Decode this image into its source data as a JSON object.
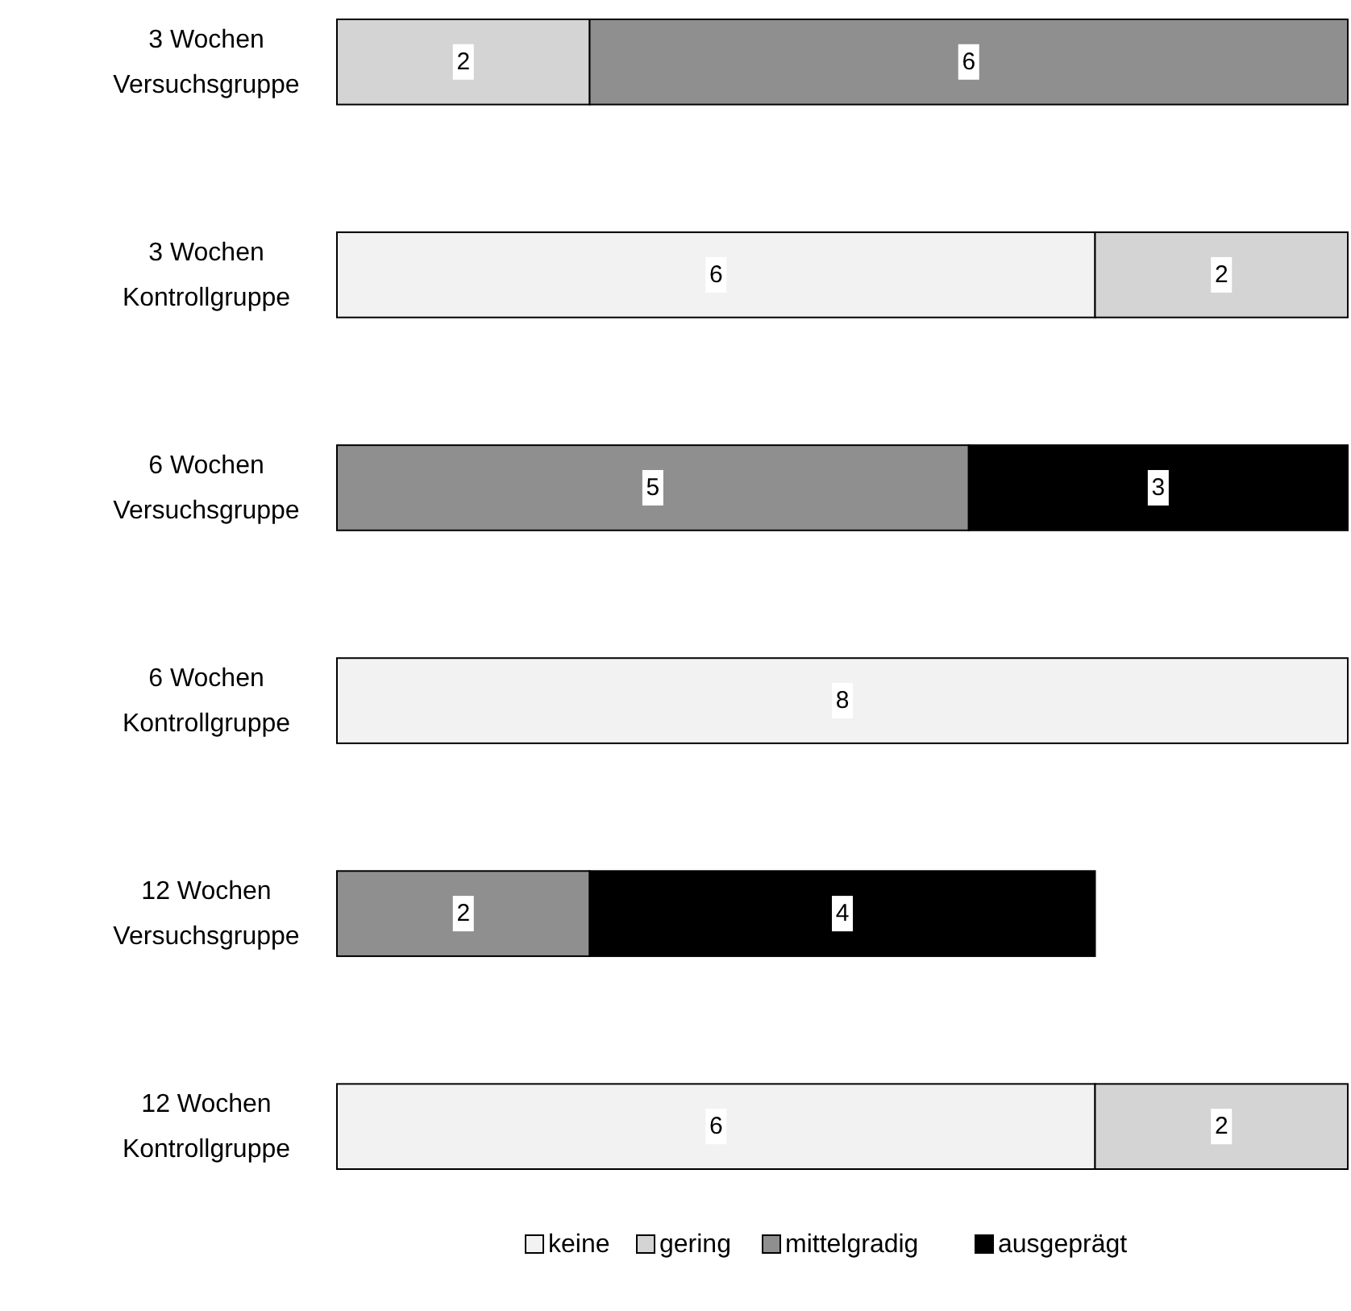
{
  "chart_data": {
    "type": "bar",
    "orientation": "horizontal",
    "stacked": true,
    "xlim": [
      0,
      8
    ],
    "data_labels": true,
    "legend": "bottom",
    "categories": [
      "3 Wochen Versuchsgruppe",
      "3 Wochen Kontrollgruppe",
      "6 Wochen Versuchsgruppe",
      "6 Wochen Kontrollgruppe",
      "12 Wochen Versuchsgruppe",
      "12 Wochen Kontrollgruppe"
    ],
    "series": [
      {
        "name": "keine",
        "color": "#f2f2f2",
        "values": [
          null,
          6,
          null,
          8,
          null,
          6
        ]
      },
      {
        "name": "gering",
        "color": "#d4d4d4",
        "values": [
          2,
          2,
          null,
          null,
          null,
          2
        ]
      },
      {
        "name": "mittelgradig",
        "color": "#8f8f8f",
        "values": [
          6,
          null,
          5,
          null,
          2,
          null
        ]
      },
      {
        "name": "ausgeprägt",
        "color": "#000000",
        "values": [
          null,
          null,
          3,
          null,
          4,
          null
        ]
      }
    ]
  }
}
